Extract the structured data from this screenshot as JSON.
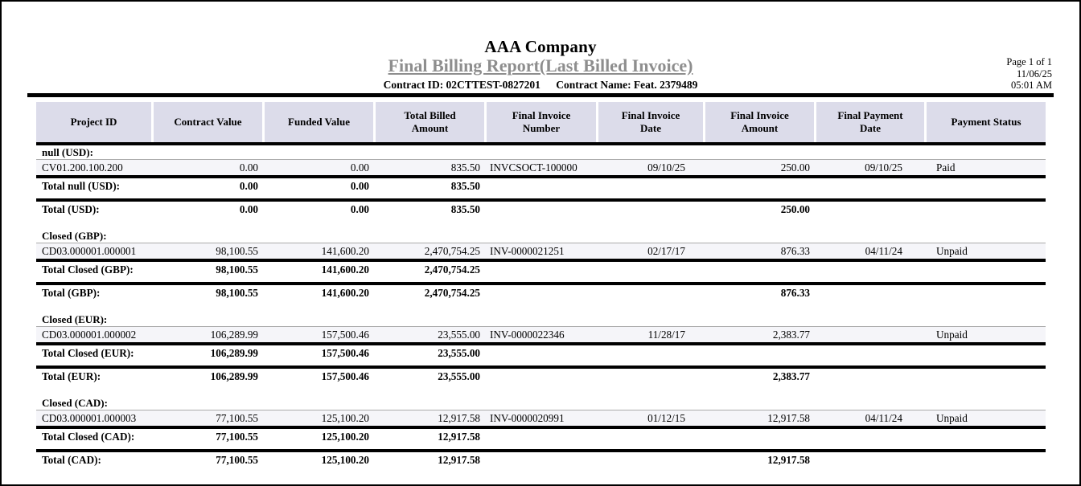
{
  "header": {
    "company": "AAA Company",
    "report_title": "Final Billing Report(Last Billed Invoice)",
    "contract_id": "Contract ID: 02CTTEST-0827201",
    "contract_name": "Contract Name: Feat. 2379489"
  },
  "meta": {
    "page": "Page 1 of 1",
    "date": "11/06/25",
    "time": "05:01 AM"
  },
  "colors": {
    "header_bg": "#dcdcea",
    "title_color": "#8e8e8e",
    "stripe_bg": "#f5f5f9",
    "rule_color": "#000000"
  },
  "table": {
    "columns": [
      {
        "key": "project_id",
        "label": "Project ID"
      },
      {
        "key": "contract_value",
        "label": "Contract Value"
      },
      {
        "key": "funded_value",
        "label": "Funded Value"
      },
      {
        "key": "total_billed",
        "label": "Total Billed Amount"
      },
      {
        "key": "invoice_number",
        "label": "Final Invoice Number"
      },
      {
        "key": "invoice_date",
        "label": "Final Invoice Date"
      },
      {
        "key": "invoice_amount",
        "label": "Final Invoice Amount"
      },
      {
        "key": "payment_date",
        "label": "Final Payment Date"
      },
      {
        "key": "payment_status",
        "label": "Payment Status"
      }
    ],
    "sections": [
      {
        "group_label": "null (USD):",
        "rows": [
          {
            "project_id": "CV01.200.100.200",
            "contract_value": "0.00",
            "funded_value": "0.00",
            "total_billed": "835.50",
            "invoice_number": "INVCSOCT-100000",
            "invoice_date": "09/10/25",
            "invoice_amount": "250.00",
            "payment_date": "09/10/25",
            "payment_status": "Paid"
          }
        ],
        "group_total": {
          "label": "Total null (USD):",
          "contract_value": "0.00",
          "funded_value": "0.00",
          "total_billed": "835.50"
        },
        "currency_total": {
          "label": "Total (USD):",
          "contract_value": "0.00",
          "funded_value": "0.00",
          "total_billed": "835.50",
          "invoice_amount": "250.00"
        }
      },
      {
        "group_label": "Closed (GBP):",
        "rows": [
          {
            "project_id": "CD03.000001.000001",
            "contract_value": "98,100.55",
            "funded_value": "141,600.20",
            "total_billed": "2,470,754.25",
            "invoice_number": "INV-0000021251",
            "invoice_date": "02/17/17",
            "invoice_amount": "876.33",
            "payment_date": "04/11/24",
            "payment_status": "Unpaid"
          }
        ],
        "group_total": {
          "label": "Total Closed (GBP):",
          "contract_value": "98,100.55",
          "funded_value": "141,600.20",
          "total_billed": "2,470,754.25"
        },
        "currency_total": {
          "label": "Total (GBP):",
          "contract_value": "98,100.55",
          "funded_value": "141,600.20",
          "total_billed": "2,470,754.25",
          "invoice_amount": "876.33"
        }
      },
      {
        "group_label": "Closed (EUR):",
        "rows": [
          {
            "project_id": "CD03.000001.000002",
            "contract_value": "106,289.99",
            "funded_value": "157,500.46",
            "total_billed": "23,555.00",
            "invoice_number": "INV-0000022346",
            "invoice_date": "11/28/17",
            "invoice_amount": "2,383.77",
            "payment_date": "",
            "payment_status": "Unpaid"
          }
        ],
        "group_total": {
          "label": "Total Closed (EUR):",
          "contract_value": "106,289.99",
          "funded_value": "157,500.46",
          "total_billed": "23,555.00"
        },
        "currency_total": {
          "label": "Total (EUR):",
          "contract_value": "106,289.99",
          "funded_value": "157,500.46",
          "total_billed": "23,555.00",
          "invoice_amount": "2,383.77"
        }
      },
      {
        "group_label": "Closed (CAD):",
        "rows": [
          {
            "project_id": "CD03.000001.000003",
            "contract_value": "77,100.55",
            "funded_value": "125,100.20",
            "total_billed": "12,917.58",
            "invoice_number": "INV-0000020991",
            "invoice_date": "01/12/15",
            "invoice_amount": "12,917.58",
            "payment_date": "04/11/24",
            "payment_status": "Unpaid"
          }
        ],
        "group_total": {
          "label": "Total Closed (CAD):",
          "contract_value": "77,100.55",
          "funded_value": "125,100.20",
          "total_billed": "12,917.58"
        },
        "currency_total": {
          "label": "Total (CAD):",
          "contract_value": "77,100.55",
          "funded_value": "125,100.20",
          "total_billed": "12,917.58",
          "invoice_amount": "12,917.58"
        }
      }
    ]
  }
}
